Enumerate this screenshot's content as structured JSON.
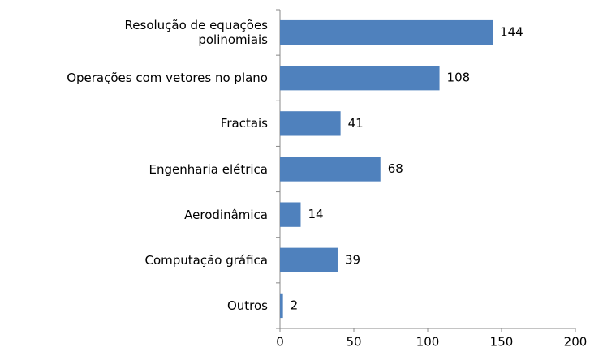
{
  "chart_data": {
    "type": "bar",
    "orientation": "horizontal",
    "categories": [
      "Resolução de equações\npolinomiais",
      "Operações com vetores no plano",
      "Fractais",
      "Engenharia elétrica",
      "Aerodinâmica",
      "Computação gráfica",
      "Outros"
    ],
    "values": [
      144,
      108,
      41,
      68,
      14,
      39,
      2
    ],
    "color": "#4f81bd",
    "xlim": [
      0,
      200
    ],
    "xticks": [
      0,
      50,
      100,
      150,
      200
    ],
    "grid": false
  }
}
